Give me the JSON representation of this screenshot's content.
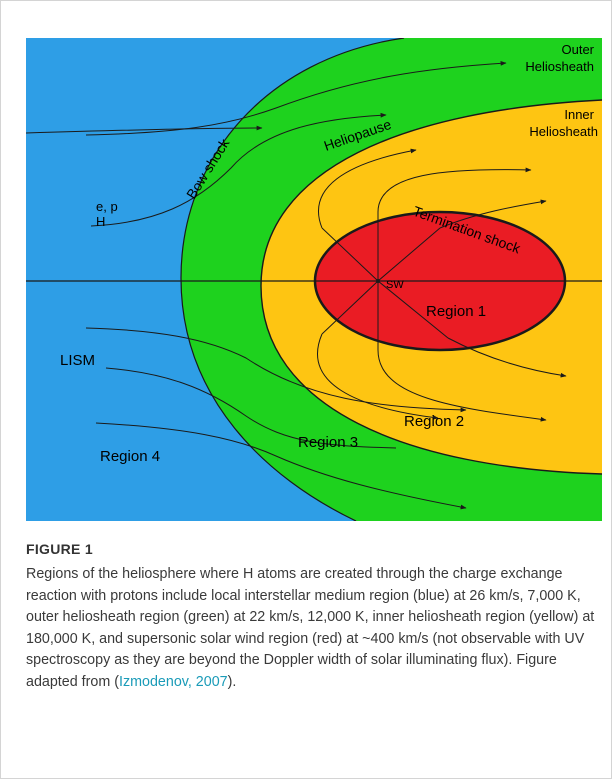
{
  "diagram": {
    "labels": {
      "outer_line1": "Outer",
      "outer_line2": "Heliosheath",
      "inner_line1": "Inner",
      "inner_line2": "Heliosheath",
      "heliopause": "Heliopause",
      "bow_shock": "Bow shock",
      "termination_shock": "Termination shock",
      "ep": "e, p",
      "h": "H",
      "sw": "SW",
      "lism": "LISM",
      "region1": "Region 1",
      "region2": "Region 2",
      "region3": "Region 3",
      "region4": "Region 4"
    },
    "colors": {
      "lism": "#2e9ee6",
      "outer_heliosheath": "#1ed21e",
      "inner_heliosheath": "#fec512",
      "supersonic_wind": "#ea1c24",
      "lines": "#1a1a1a"
    }
  },
  "caption": {
    "label": "FIGURE 1",
    "text": "Regions of the heliosphere where H atoms are created through the charge exchange reaction with protons include local interstellar medium region (blue) at 26 km/s, 7,000 K, outer heliosheath region (green) at 22 km/s, 12,000 K, inner heliosheath region (yellow) at 180,000 K, and supersonic solar wind region (red) at ~400 km/s (not observable with UV spectroscopy as they are beyond the Doppler width of solar illuminating flux). Figure adapted from (",
    "link_text": "Izmodenov, 2007",
    "text_end": ")."
  }
}
